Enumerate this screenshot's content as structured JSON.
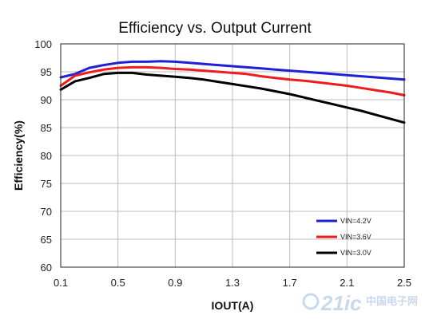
{
  "chart_data": {
    "type": "line",
    "title": "Efficiency vs. Output Current",
    "xlabel": "IOUT(A)",
    "ylabel": "Efficiency(%)",
    "xlim": [
      0.1,
      2.5
    ],
    "ylim": [
      60,
      100
    ],
    "x_ticks": [
      "0.1",
      "0.5",
      "0.9",
      "1.3",
      "1.7",
      "2.1",
      "2.5"
    ],
    "y_ticks": [
      "60",
      "65",
      "70",
      "75",
      "80",
      "85",
      "90",
      "95",
      "100"
    ],
    "grid": true,
    "legend_position": "bottom-right",
    "series": [
      {
        "name": "VIN=4.2V",
        "color": "#1f1fd8",
        "points": [
          [
            0.1,
            94.0
          ],
          [
            0.2,
            94.6
          ],
          [
            0.3,
            95.7
          ],
          [
            0.4,
            96.2
          ],
          [
            0.5,
            96.6
          ],
          [
            0.6,
            96.8
          ],
          [
            0.7,
            96.8
          ],
          [
            0.8,
            96.9
          ],
          [
            0.9,
            96.8
          ],
          [
            1.0,
            96.6
          ],
          [
            1.1,
            96.4
          ],
          [
            1.2,
            96.2
          ],
          [
            1.3,
            96.0
          ],
          [
            1.4,
            95.8
          ],
          [
            1.5,
            95.6
          ],
          [
            1.6,
            95.4
          ],
          [
            1.7,
            95.2
          ],
          [
            1.8,
            95.0
          ],
          [
            1.9,
            94.8
          ],
          [
            2.0,
            94.6
          ],
          [
            2.1,
            94.4
          ],
          [
            2.2,
            94.2
          ],
          [
            2.3,
            94.0
          ],
          [
            2.4,
            93.8
          ],
          [
            2.5,
            93.6
          ]
        ]
      },
      {
        "name": "VIN=3.6V",
        "color": "#ee1c1c",
        "points": [
          [
            0.1,
            92.5
          ],
          [
            0.2,
            94.3
          ],
          [
            0.3,
            94.9
          ],
          [
            0.4,
            95.4
          ],
          [
            0.5,
            95.7
          ],
          [
            0.6,
            95.8
          ],
          [
            0.7,
            95.8
          ],
          [
            0.8,
            95.7
          ],
          [
            0.9,
            95.5
          ],
          [
            1.0,
            95.4
          ],
          [
            1.1,
            95.2
          ],
          [
            1.2,
            95.0
          ],
          [
            1.3,
            94.8
          ],
          [
            1.4,
            94.6
          ],
          [
            1.5,
            94.2
          ],
          [
            1.6,
            93.9
          ],
          [
            1.7,
            93.6
          ],
          [
            1.8,
            93.4
          ],
          [
            1.9,
            93.1
          ],
          [
            2.0,
            92.8
          ],
          [
            2.1,
            92.5
          ],
          [
            2.2,
            92.1
          ],
          [
            2.3,
            91.7
          ],
          [
            2.4,
            91.3
          ],
          [
            2.5,
            90.8
          ]
        ]
      },
      {
        "name": "VIN=3.0V",
        "color": "#000000",
        "points": [
          [
            0.1,
            91.8
          ],
          [
            0.2,
            93.3
          ],
          [
            0.3,
            93.9
          ],
          [
            0.4,
            94.6
          ],
          [
            0.5,
            94.8
          ],
          [
            0.6,
            94.8
          ],
          [
            0.7,
            94.5
          ],
          [
            0.8,
            94.3
          ],
          [
            0.9,
            94.1
          ],
          [
            1.0,
            93.9
          ],
          [
            1.1,
            93.6
          ],
          [
            1.2,
            93.2
          ],
          [
            1.3,
            92.8
          ],
          [
            1.4,
            92.4
          ],
          [
            1.5,
            92.0
          ],
          [
            1.6,
            91.5
          ],
          [
            1.7,
            91.0
          ],
          [
            1.8,
            90.4
          ],
          [
            1.9,
            89.8
          ],
          [
            2.0,
            89.2
          ],
          [
            2.1,
            88.6
          ],
          [
            2.2,
            88.0
          ],
          [
            2.3,
            87.3
          ],
          [
            2.4,
            86.6
          ],
          [
            2.5,
            85.9
          ]
        ]
      }
    ]
  },
  "watermark": {
    "text": "21ic",
    "subtext": "中国电子网",
    "color": "#c9d9ec"
  }
}
